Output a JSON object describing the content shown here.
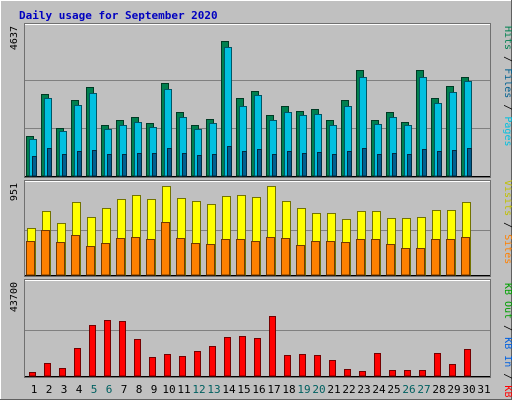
{
  "colors": {
    "background": "#c0c0c0",
    "plot_background": "#c0c0c0",
    "gridline": "#808080",
    "title": "#0000c0",
    "pages": "#00c0e0",
    "pages_dark": "#006090",
    "files": "#006090",
    "hits": "#008050",
    "hits_light": "#208060",
    "visits": "#ffff00",
    "sites": "#ff8000",
    "kb_f": "#ff0000",
    "kb_in": "#0060e0",
    "kb_out": "#00a000",
    "day_normal": "#000000",
    "day_weekend": "#006060"
  },
  "chart_data": {
    "title": "Daily usage for September 2020",
    "type": "bar",
    "categories": [
      "1",
      "2",
      "3",
      "4",
      "5",
      "6",
      "7",
      "8",
      "9",
      "10",
      "11",
      "12",
      "13",
      "14",
      "15",
      "16",
      "17",
      "18",
      "19",
      "20",
      "21",
      "22",
      "23",
      "24",
      "25",
      "26",
      "27",
      "28",
      "29",
      "30",
      "31"
    ],
    "weekend_days": [
      "5",
      "6",
      "12",
      "13",
      "19",
      "20",
      "26",
      "27"
    ],
    "panels": [
      {
        "name": "hits-files-pages",
        "ymax_label": "4637",
        "ylim": [
          0,
          4637
        ],
        "grid": true,
        "legend": {
          "placement": "right",
          "entries": [
            "Pages",
            "Files",
            "Hits"
          ],
          "separator": "/"
        },
        "series": [
          {
            "name": "Hits",
            "color": "#008050",
            "values": [
              1300,
              2650,
              1550,
              2450,
              2850,
              1650,
              1800,
              1900,
              1700,
              3000,
              2050,
              1650,
              1850,
              4350,
              2500,
              2750,
              1950,
              2250,
              2100,
              2150,
              1800,
              2450,
              3400,
              1800,
              2050,
              1750,
              3400,
              2500,
              2900,
              3200
            ]
          },
          {
            "name": "Files",
            "color": "#00c0e0",
            "values": [
              1180,
              2500,
              1450,
              2280,
              2680,
              1500,
              1650,
              1750,
              1580,
              2800,
              1900,
              1500,
              1700,
              4150,
              2250,
              2600,
              1800,
              2050,
              1950,
              2000,
              1650,
              2250,
              3200,
              1680,
              1900,
              1650,
              3200,
              2350,
              2700,
              3050
            ]
          },
          {
            "name": "Pages",
            "color": "#006090",
            "values": [
              650,
              900,
              700,
              800,
              850,
              720,
              700,
              750,
              730,
              900,
              750,
              680,
              700,
              950,
              820,
              880,
              700,
              800,
              750,
              760,
              700,
              800,
              900,
              720,
              750,
              700,
              880,
              800,
              850,
              900
            ]
          }
        ]
      },
      {
        "name": "visits-sites",
        "ymax_label": "951",
        "ylim": [
          0,
          951
        ],
        "grid": true,
        "legend": {
          "placement": "right",
          "entries": [
            "Sites",
            "Visits"
          ],
          "separator": "/"
        },
        "series": [
          {
            "name": "Visits",
            "color": "#ffff00",
            "values": [
              500,
              680,
              560,
              780,
              620,
              720,
              810,
              860,
              810,
              951,
              820,
              790,
              760,
              840,
              860,
              830,
              951,
              790,
              720,
              660,
              660,
              600,
              680,
              680,
              610,
              610,
              620,
              690,
              690,
              780
            ]
          },
          {
            "name": "Sites",
            "color": "#ff8000",
            "values": [
              360,
              480,
              350,
              430,
              310,
              340,
              400,
              410,
              390,
              570,
              400,
              340,
              330,
              380,
              390,
              360,
              410,
              400,
              320,
              360,
              360,
              350,
              380,
              380,
              330,
              290,
              290,
              390,
              390,
              410
            ]
          }
        ]
      },
      {
        "name": "kbytes",
        "ymax_label": "43700",
        "ylim": [
          0,
          43700
        ],
        "grid": true,
        "legend": {
          "placement": "right",
          "entries": [
            "KB F",
            "KB In",
            "KB Out"
          ],
          "separator": "/"
        },
        "series": [
          {
            "name": "KB F",
            "color": "#ff0000",
            "values": [
              2000,
              6500,
              3800,
              13500,
              25000,
              27000,
              26500,
              17800,
              9000,
              10500,
              9500,
              12000,
              14500,
              19000,
              19500,
              18500,
              29000,
              10000,
              10500,
              10000,
              8000,
              3200,
              2500,
              11000,
              2700,
              3000,
              3000,
              11000,
              5700,
              13000
            ]
          }
        ]
      }
    ]
  }
}
